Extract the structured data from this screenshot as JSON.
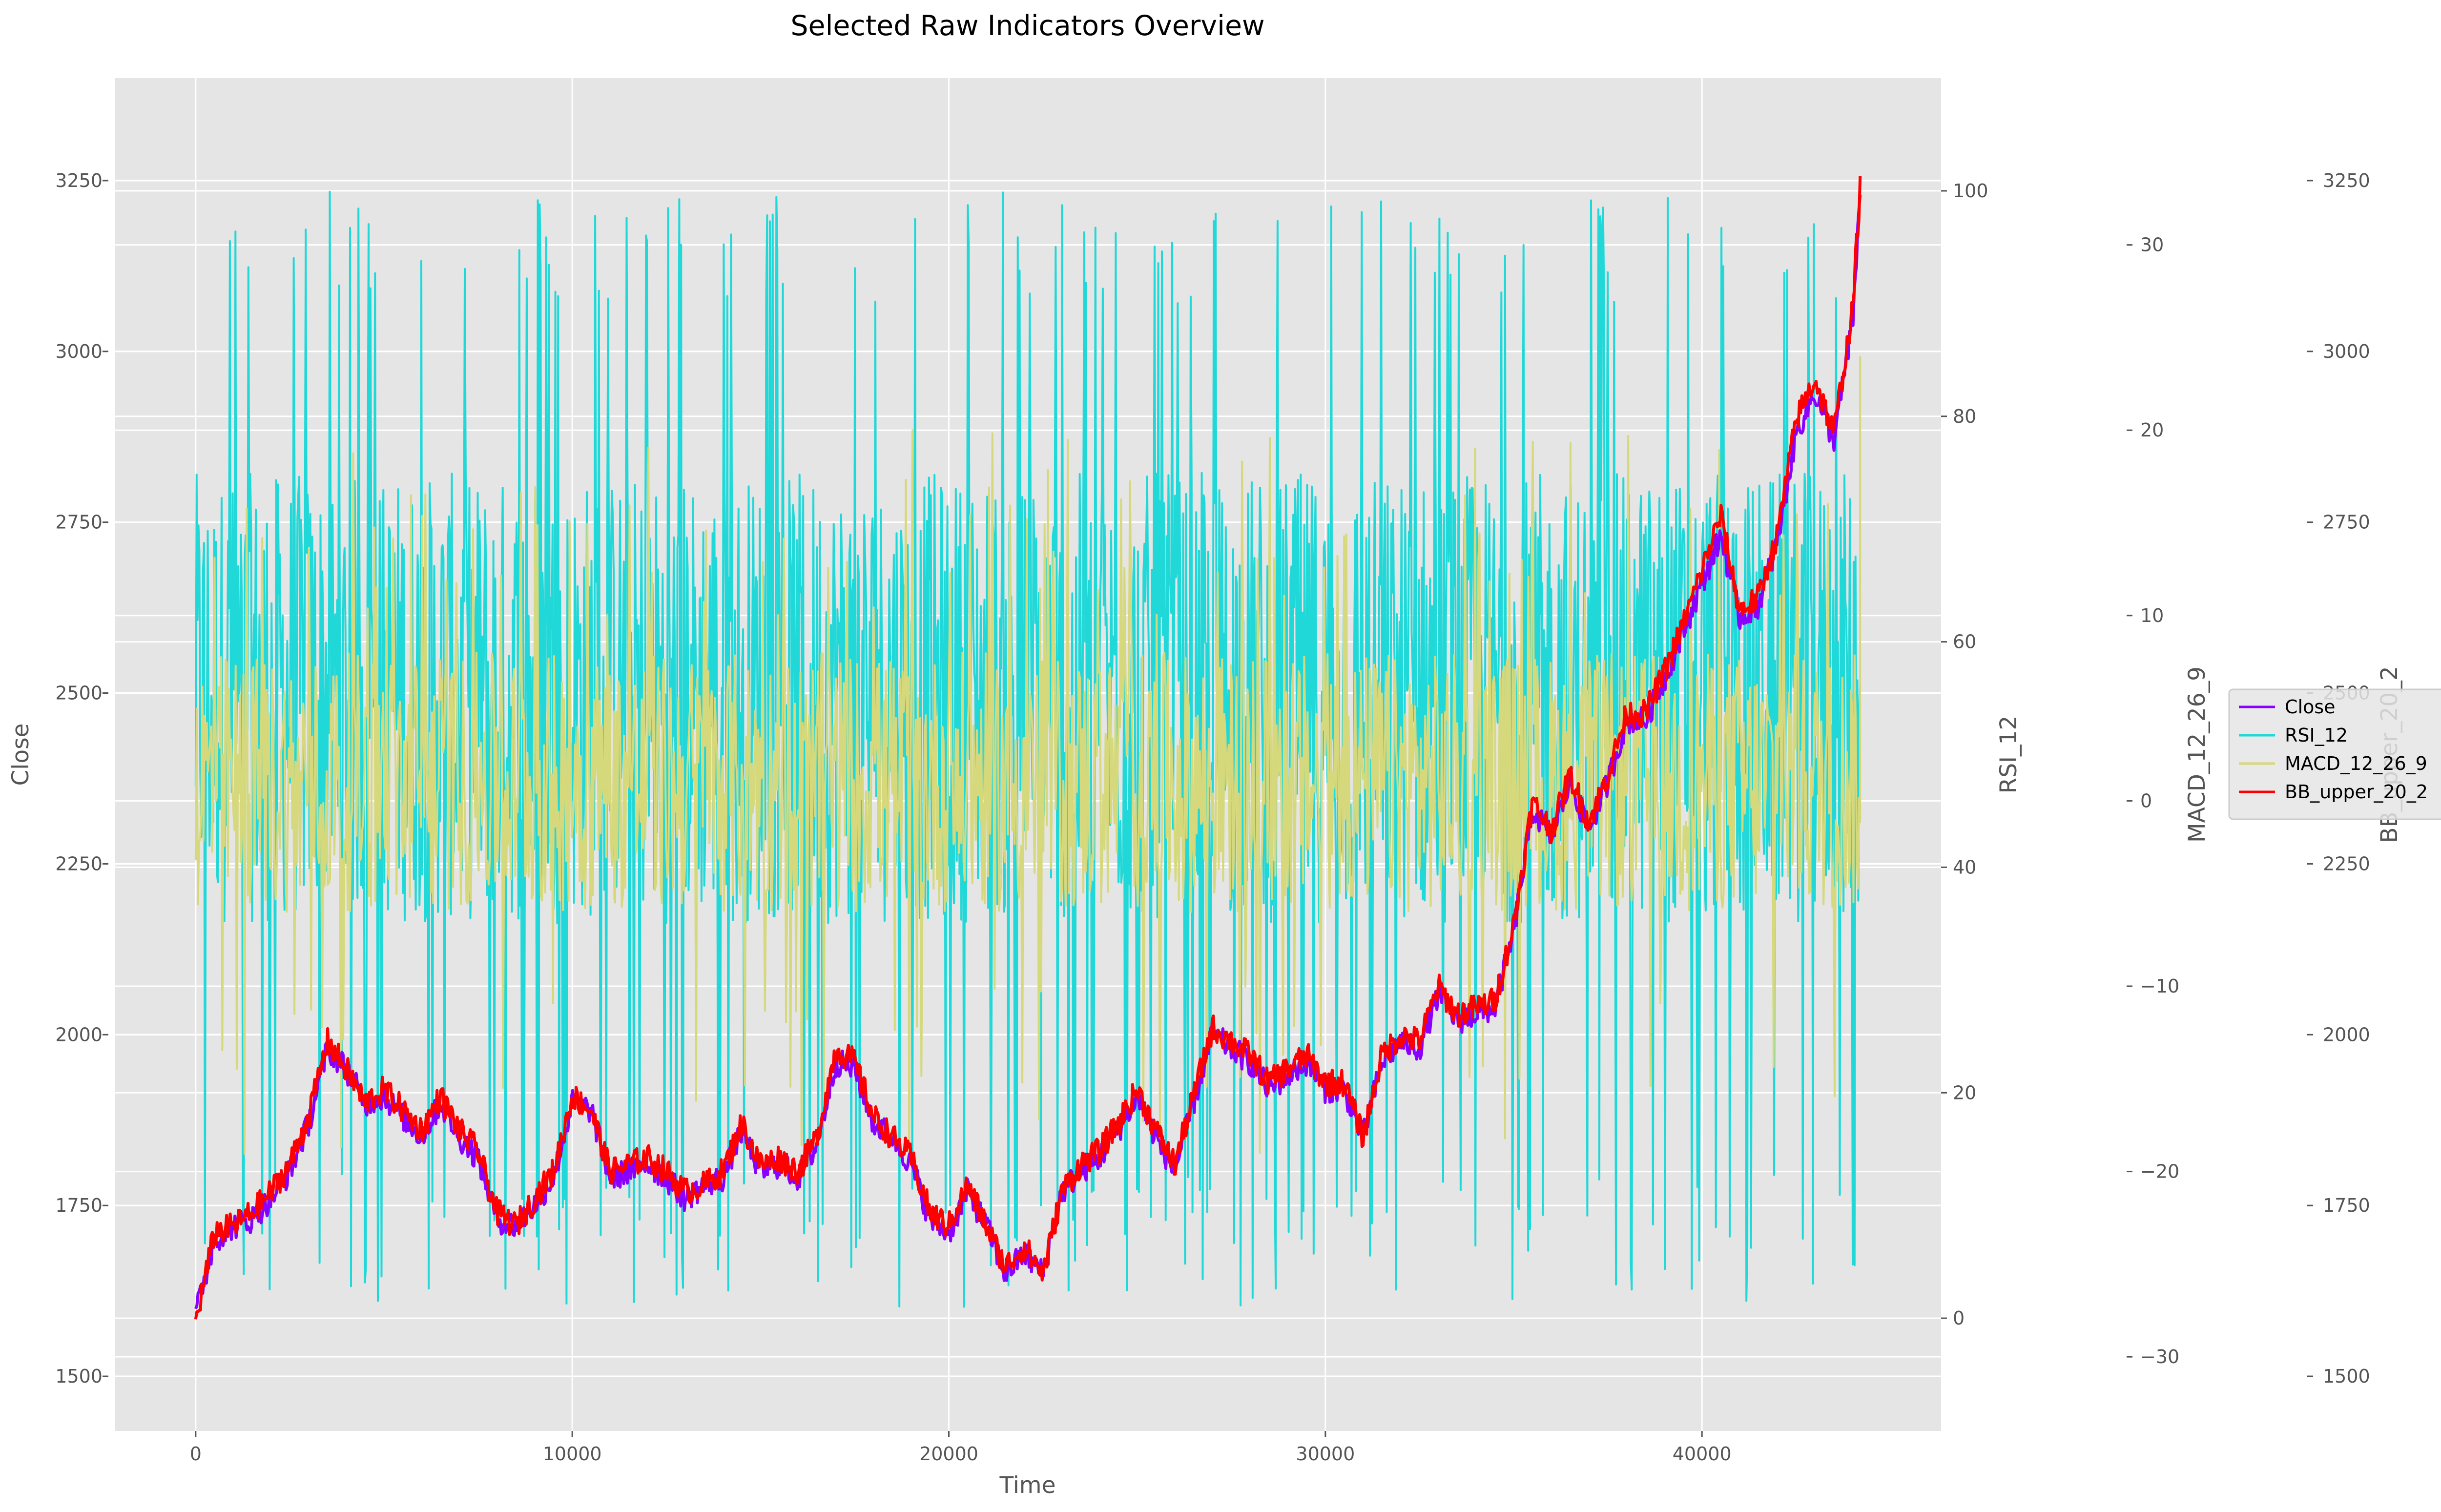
{
  "chart_data": {
    "type": "line",
    "title": "Selected Raw Indicators Overview",
    "xlabel": "Time",
    "xlim": [
      -2150,
      46350
    ],
    "xticks": [
      0,
      10000,
      20000,
      30000,
      40000
    ],
    "grid": true,
    "legend_position": "right",
    "axes": [
      {
        "id": "close",
        "label": "Close",
        "side": "left",
        "ylim": [
          1420,
          3400
        ],
        "ticks": [
          1500,
          1750,
          2000,
          2250,
          2500,
          2750,
          3000,
          3250
        ]
      },
      {
        "id": "rsi",
        "label": "RSI_12",
        "side": "right",
        "ylim": [
          -10,
          110
        ],
        "ticks": [
          0,
          20,
          40,
          60,
          80,
          100
        ]
      },
      {
        "id": "macd",
        "label": "MACD_12_26_9",
        "side": "right",
        "ylim": [
          -34,
          39
        ],
        "ticks": [
          -30,
          -20,
          -10,
          0,
          10,
          20,
          30
        ]
      },
      {
        "id": "bb",
        "label": "BB_upper_20_2",
        "side": "right",
        "ylim": [
          1420,
          3400
        ],
        "ticks": [
          1500,
          1750,
          2000,
          2250,
          2500,
          2750,
          3000,
          3250
        ]
      }
    ],
    "x": [
      0,
      500,
      1000,
      1500,
      2000,
      2500,
      3000,
      3500,
      4000,
      4500,
      5000,
      5500,
      6000,
      6500,
      7000,
      7500,
      8000,
      8500,
      9000,
      9500,
      10000,
      10500,
      11000,
      11500,
      12000,
      12500,
      13000,
      13500,
      14000,
      14500,
      15000,
      15500,
      16000,
      16500,
      17000,
      17500,
      18000,
      18500,
      19000,
      19500,
      20000,
      20500,
      21000,
      21500,
      22000,
      22500,
      23000,
      23500,
      24000,
      24500,
      25000,
      25500,
      26000,
      26500,
      27000,
      27500,
      28000,
      28500,
      29000,
      29500,
      30000,
      30500,
      31000,
      31500,
      32000,
      32500,
      33000,
      33500,
      34000,
      34500,
      35000,
      35500,
      36000,
      36500,
      37000,
      37500,
      38000,
      38500,
      39000,
      39500,
      40000,
      40500,
      41000,
      41500,
      42000,
      42500,
      43000,
      43500,
      44000,
      44200
    ],
    "series": [
      {
        "name": "Close",
        "axis": "close",
        "color": "#8a00ff",
        "values": [
          1590,
          1700,
          1720,
          1730,
          1760,
          1800,
          1870,
          1980,
          1950,
          1900,
          1910,
          1880,
          1850,
          1900,
          1850,
          1820,
          1730,
          1720,
          1750,
          1790,
          1900,
          1890,
          1790,
          1800,
          1810,
          1790,
          1760,
          1780,
          1790,
          1860,
          1800,
          1810,
          1790,
          1840,
          1960,
          1950,
          1870,
          1850,
          1810,
          1730,
          1710,
          1770,
          1720,
          1650,
          1680,
          1650,
          1770,
          1800,
          1820,
          1860,
          1910,
          1850,
          1800,
          1900,
          2000,
          1980,
          1960,
          1920,
          1940,
          1960,
          1920,
          1920,
          1850,
          1960,
          1990,
          1980,
          2060,
          2020,
          2030,
          2040,
          2150,
          2330,
          2290,
          2370,
          2300,
          2370,
          2460,
          2460,
          2520,
          2590,
          2660,
          2730,
          2610,
          2630,
          2720,
          2880,
          2940,
          2870,
          3040,
          3230
        ]
      },
      {
        "name": "RSI_12",
        "axis": "rsi",
        "color": "#21d8d8"
      },
      {
        "name": "MACD_12_26_9",
        "axis": "macd",
        "color": "#d6d87c"
      },
      {
        "name": "BB_upper_20_2",
        "axis": "bb",
        "color": "#ff0000",
        "values": [
          1580,
          1710,
          1720,
          1740,
          1770,
          1810,
          1880,
          1990,
          1950,
          1900,
          1920,
          1890,
          1860,
          1910,
          1860,
          1830,
          1740,
          1720,
          1760,
          1800,
          1910,
          1890,
          1800,
          1810,
          1820,
          1800,
          1770,
          1780,
          1800,
          1870,
          1810,
          1820,
          1800,
          1850,
          1980,
          1960,
          1880,
          1850,
          1820,
          1740,
          1720,
          1780,
          1720,
          1660,
          1690,
          1650,
          1770,
          1810,
          1830,
          1870,
          1920,
          1860,
          1810,
          1910,
          2010,
          1990,
          1970,
          1930,
          1950,
          1970,
          1930,
          1930,
          1850,
          1970,
          2000,
          1990,
          2070,
          2030,
          2040,
          2050,
          2160,
          2340,
          2300,
          2380,
          2310,
          2380,
          2470,
          2470,
          2530,
          2600,
          2680,
          2760,
          2620,
          2640,
          2730,
          2900,
          2960,
          2880,
          3060,
          3240
        ]
      }
    ],
    "rsi_band": {
      "min": 0,
      "max": 100,
      "typical_low": 35,
      "typical_high": 75
    },
    "macd_band": {
      "typical_low": -6,
      "typical_high": 8,
      "extremes": [
        -30,
        24
      ]
    },
    "legend": [
      "Close",
      "RSI_12",
      "MACD_12_26_9",
      "BB_upper_20_2"
    ]
  }
}
